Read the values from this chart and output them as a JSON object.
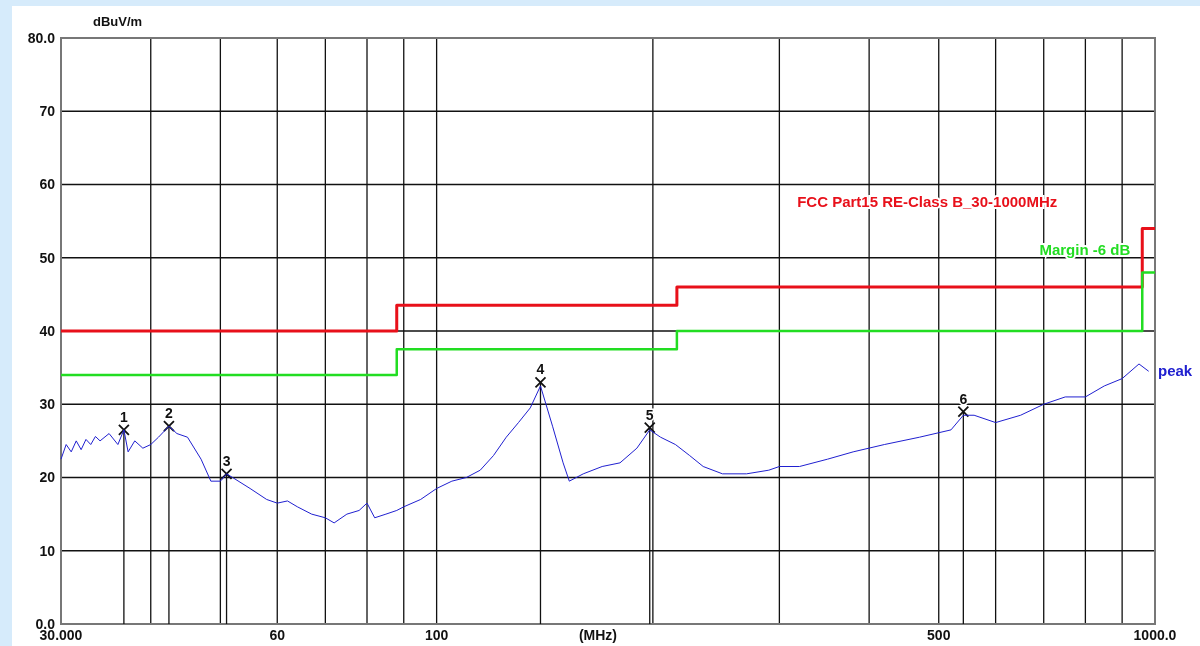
{
  "chart_data": {
    "type": "line",
    "xlabel": "(MHz)",
    "ylabel": "dBuV/m",
    "log": "x",
    "grid": true,
    "xlim": [
      30,
      1000
    ],
    "ylim": [
      0,
      80
    ],
    "xticks": [
      {
        "value": 30,
        "label": "30.000"
      },
      {
        "value": 40,
        "label": null
      },
      {
        "value": 50,
        "label": null
      },
      {
        "value": 60,
        "label": "60"
      },
      {
        "value": 70,
        "label": null
      },
      {
        "value": 80,
        "label": null
      },
      {
        "value": 90,
        "label": null
      },
      {
        "value": 100,
        "label": "100"
      },
      {
        "value": 200,
        "label": null
      },
      {
        "value": 300,
        "label": null
      },
      {
        "value": 400,
        "label": null
      },
      {
        "value": 500,
        "label": "500"
      },
      {
        "value": 600,
        "label": null
      },
      {
        "value": 700,
        "label": null
      },
      {
        "value": 800,
        "label": null
      },
      {
        "value": 900,
        "label": null
      },
      {
        "value": 1000,
        "label": "1000.0"
      }
    ],
    "yticks": [
      {
        "value": 0,
        "label": "0.0"
      },
      10,
      20,
      30,
      40,
      50,
      60,
      70,
      {
        "value": 80,
        "label": "80.0"
      }
    ],
    "series": [
      {
        "name": "FCC Part15 RE-Class B_30-1000MHz",
        "type": "step",
        "color": "#e8101a",
        "x": [
          30,
          88,
          216,
          960,
          1000
        ],
        "values": [
          40,
          43.5,
          46,
          54,
          54
        ]
      },
      {
        "name": "Margin -6 dB",
        "type": "step",
        "color": "#22dd22",
        "x": [
          30,
          88,
          216,
          960,
          1000
        ],
        "values": [
          34,
          37.5,
          40,
          48,
          48
        ]
      },
      {
        "name": "peak",
        "color": "#2020d0",
        "x": [
          30,
          30.5,
          31,
          31.5,
          32,
          32.5,
          33,
          33.5,
          34,
          35,
          36,
          36.7,
          37.2,
          38,
          39,
          40,
          41,
          42.4,
          43.5,
          45,
          47,
          48.5,
          50,
          51,
          52,
          55,
          58,
          60,
          62,
          64,
          67,
          70,
          72,
          75,
          78,
          80,
          82,
          85,
          88,
          90,
          95,
          100,
          105,
          110,
          115,
          120,
          125,
          130,
          135,
          139.5,
          145,
          150,
          153,
          160,
          170,
          180,
          190,
          198,
          205,
          215,
          225,
          235,
          250,
          270,
          290,
          300,
          320,
          350,
          380,
          420,
          470,
          520,
          541,
          560,
          600,
          650,
          700,
          750,
          800,
          850,
          900,
          950,
          980
        ],
        "values": [
          22.5,
          24.5,
          23.5,
          25,
          23.8,
          25.2,
          24.5,
          25.6,
          25,
          26,
          24.5,
          26.5,
          23.5,
          25,
          24,
          24.5,
          25.5,
          27,
          26,
          25.5,
          22.5,
          19.5,
          19.5,
          20.5,
          20,
          18.5,
          17,
          16.5,
          16.8,
          16,
          15,
          14.5,
          13.8,
          15,
          15.5,
          16.5,
          14.5,
          15,
          15.5,
          16,
          17,
          18.5,
          19.5,
          20,
          21,
          23,
          25.5,
          27.5,
          29.5,
          32.5,
          27,
          22,
          19.5,
          20.5,
          21.5,
          22,
          24,
          26.5,
          25.5,
          24.5,
          23,
          21.5,
          20.5,
          20.5,
          21,
          21.5,
          21.5,
          22.5,
          23.5,
          24.5,
          25.5,
          26.5,
          28.5,
          28.5,
          27.5,
          28.5,
          30,
          31,
          31,
          32.5,
          33.5,
          35.5,
          34.5
        ]
      }
    ],
    "annotations": [
      {
        "text": "1",
        "x": 36.7,
        "y": 26.5
      },
      {
        "text": "2",
        "x": 42.4,
        "y": 27
      },
      {
        "text": "3",
        "x": 51,
        "y": 20.5
      },
      {
        "text": "4",
        "x": 139.5,
        "y": 33
      },
      {
        "text": "5",
        "x": 198,
        "y": 26.8
      },
      {
        "text": "6",
        "x": 541,
        "y": 29
      }
    ]
  }
}
